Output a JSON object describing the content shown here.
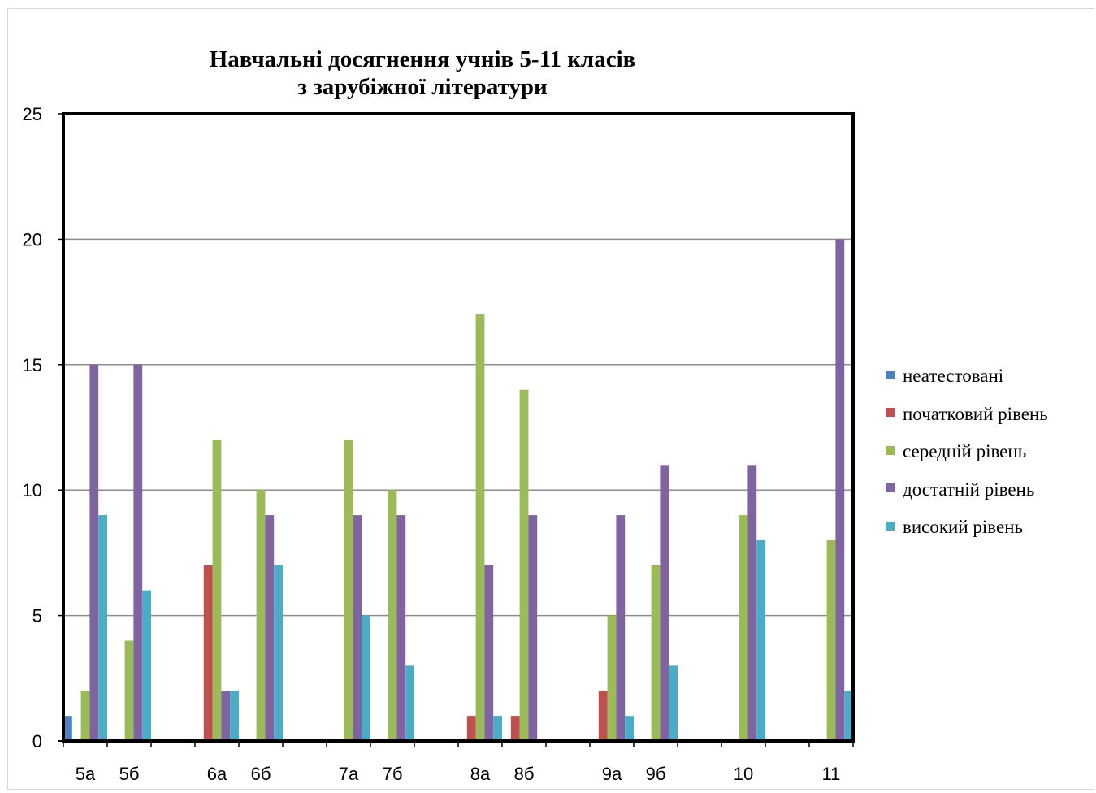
{
  "chart_data": {
    "type": "bar",
    "title": [
      "Навчальні досягнення учнів 5-11 класів",
      "з зарубіжної літератури"
    ],
    "categories": [
      "5а",
      "5б",
      "",
      "6а",
      "6б",
      "",
      "7а",
      "7б",
      "",
      "8а",
      "8б",
      "",
      "9а",
      "9б",
      "",
      "10",
      "",
      "11"
    ],
    "series": [
      {
        "name": "неатестовані",
        "color": "#4f81bd",
        "values": [
          1,
          0,
          0,
          0,
          0,
          0,
          0,
          0,
          0,
          0,
          0,
          0,
          0,
          0,
          0,
          0,
          0,
          0
        ]
      },
      {
        "name": "початковий рівень",
        "color": "#c0504d",
        "values": [
          0,
          0,
          0,
          7,
          0,
          0,
          0,
          0,
          0,
          1,
          1,
          0,
          2,
          0,
          0,
          0,
          0,
          0
        ]
      },
      {
        "name": "середній рівень",
        "color": "#9bbb59",
        "values": [
          2,
          4,
          0,
          12,
          10,
          0,
          12,
          10,
          0,
          17,
          14,
          0,
          5,
          7,
          0,
          9,
          0,
          8
        ]
      },
      {
        "name": "достатній рівень",
        "color": "#8064a2",
        "values": [
          15,
          15,
          0,
          2,
          9,
          0,
          9,
          9,
          0,
          7,
          9,
          0,
          9,
          11,
          0,
          11,
          0,
          20
        ]
      },
      {
        "name": "високий рівень",
        "color": "#4bacc6",
        "values": [
          9,
          6,
          0,
          2,
          7,
          0,
          5,
          3,
          0,
          1,
          0,
          0,
          1,
          3,
          0,
          8,
          0,
          2
        ]
      }
    ],
    "ylim": [
      0,
      25
    ],
    "yticks": [
      0,
      5,
      10,
      15,
      20,
      25
    ],
    "grid": true,
    "legend": "right"
  }
}
